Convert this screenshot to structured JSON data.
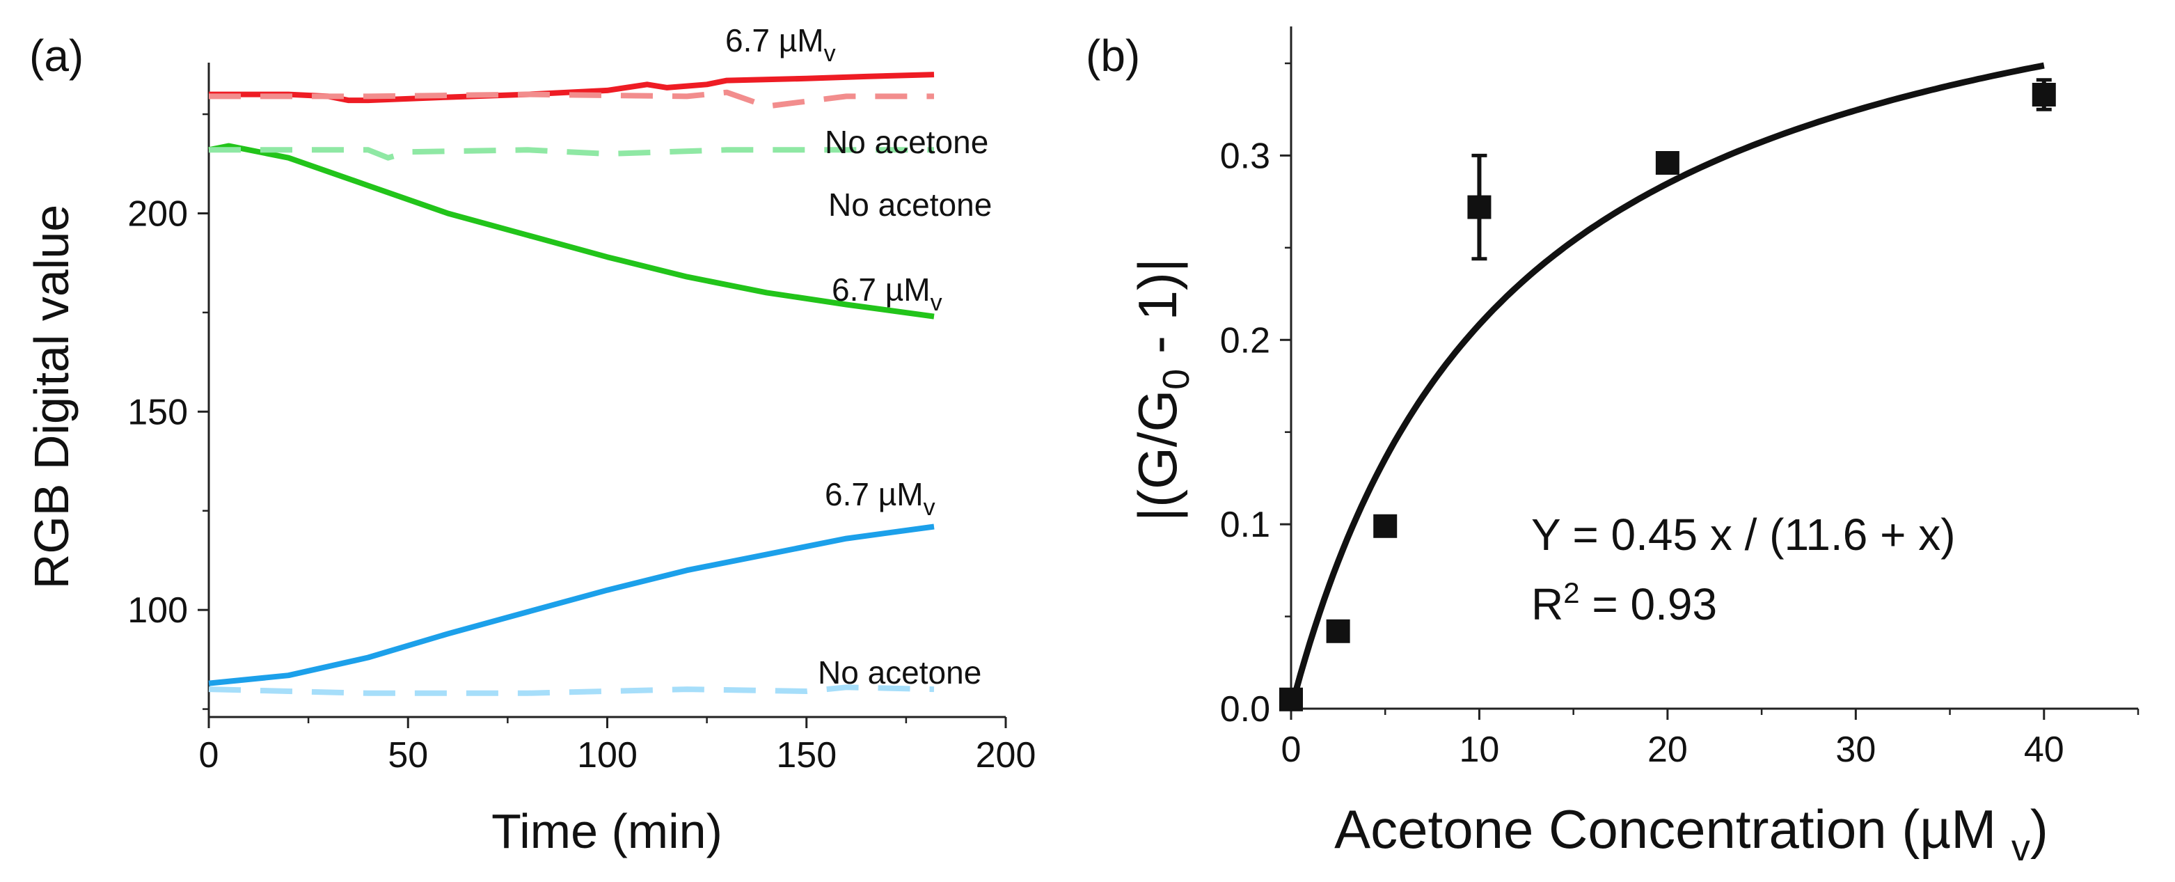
{
  "chart_data": [
    {
      "panel": "a",
      "panel_label": "(a)",
      "type": "line",
      "xlabel": "Time (min)",
      "ylabel": "RGB Digital value",
      "xlim": [
        0,
        200
      ],
      "ylim": [
        73,
        238
      ],
      "x_ticks": [
        0,
        50,
        100,
        150,
        200
      ],
      "x_tick_labels": [
        "0",
        "50",
        "100",
        "150",
        "200"
      ],
      "y_ticks": [
        100,
        150,
        200
      ],
      "y_tick_labels": [
        "100",
        "150",
        "200"
      ],
      "colors": {
        "red": "#ee1c24",
        "red_light": "#f28d8d",
        "green": "#22c41a",
        "green_light": "#8fe8a4",
        "blue": "#1ca0ea",
        "blue_light": "#a6defa"
      },
      "series": [
        {
          "name": "Red 6.7 µMv",
          "color": "#ee1c24",
          "dash": false,
          "x": [
            0,
            20,
            30,
            35,
            40,
            60,
            80,
            100,
            110,
            115,
            125,
            130,
            150,
            165,
            182
          ],
          "y": [
            230,
            230,
            229.5,
            228.5,
            228.5,
            229.3,
            230,
            231,
            232.5,
            231.7,
            232.5,
            233.5,
            234,
            234.5,
            235
          ]
        },
        {
          "name": "Red No acetone",
          "color": "#f28d8d",
          "dash": true,
          "x": [
            0,
            40,
            80,
            120,
            130,
            140,
            160,
            182
          ],
          "y": [
            229.5,
            229.5,
            230,
            229.5,
            230.5,
            227,
            229.5,
            229.5
          ]
        },
        {
          "name": "Green 6.7 µMv",
          "color": "#22c41a",
          "dash": false,
          "x": [
            0,
            5,
            20,
            40,
            60,
            80,
            100,
            120,
            140,
            160,
            182
          ],
          "y": [
            216,
            217,
            214,
            207,
            200,
            194.5,
            189,
            184,
            180,
            177,
            174
          ]
        },
        {
          "name": "Green No acetone",
          "color": "#8fe8a4",
          "dash": true,
          "x": [
            0,
            40,
            45,
            50,
            80,
            100,
            130,
            182
          ],
          "y": [
            216,
            216,
            214,
            215.5,
            216,
            215,
            216,
            216
          ]
        },
        {
          "name": "Blue 6.7 µMv",
          "color": "#1ca0ea",
          "dash": false,
          "x": [
            0,
            20,
            40,
            60,
            80,
            100,
            120,
            140,
            160,
            182
          ],
          "y": [
            81.5,
            83.5,
            88,
            94,
            99.5,
            105,
            110,
            114,
            118,
            121
          ]
        },
        {
          "name": "Blue No acetone",
          "color": "#a6defa",
          "dash": true,
          "x": [
            0,
            20,
            40,
            80,
            120,
            150,
            160,
            182
          ],
          "y": [
            80,
            79.5,
            79,
            79,
            80,
            79.5,
            80.5,
            80
          ]
        }
      ],
      "annotations": [
        {
          "text": "6.7 µM",
          "sub": "v",
          "target": "red"
        },
        {
          "text": "No acetone",
          "target": "red"
        },
        {
          "text": "No acetone",
          "target": "green"
        },
        {
          "text": "6.7 µM",
          "sub": "v",
          "target": "green"
        },
        {
          "text": "6.7 µM",
          "sub": "v",
          "target": "blue"
        },
        {
          "text": "No acetone",
          "target": "blue"
        }
      ]
    },
    {
      "panel": "b",
      "panel_label": "(b)",
      "type": "scatter",
      "xlabel_main": "Acetone Concentration (µM ",
      "xlabel_sub": "v",
      "xlabel_close": ")",
      "ylabel_main": "|(G/G",
      "ylabel_sub": "0",
      "ylabel_close": " - 1)|",
      "xlim": [
        0,
        45
      ],
      "ylim": [
        0,
        0.37
      ],
      "x_ticks": [
        0,
        10,
        20,
        30,
        40
      ],
      "x_tick_labels": [
        "0",
        "10",
        "20",
        "30",
        "40"
      ],
      "y_ticks": [
        0.0,
        0.1,
        0.2,
        0.3
      ],
      "y_tick_labels": [
        "0.0",
        "0.1",
        "0.2",
        "0.3"
      ],
      "points": [
        {
          "x": 0,
          "y": 0.005,
          "err": 0.003
        },
        {
          "x": 2.5,
          "y": 0.042,
          "err": 0.003
        },
        {
          "x": 5,
          "y": 0.099,
          "err": 0.003
        },
        {
          "x": 10,
          "y": 0.272,
          "err": 0.028
        },
        {
          "x": 20,
          "y": 0.296,
          "err": 0.004
        },
        {
          "x": 40,
          "y": 0.333,
          "err": 0.008
        }
      ],
      "fit": {
        "a": 0.45,
        "b": 11.6,
        "x_range": [
          0,
          40
        ]
      },
      "equation_text": "Y = 0.45 x / (11.6 + x)",
      "r2_prefix": "R",
      "r2_sup": "2",
      "r2_suffix": " = 0.93",
      "marker_color": "#111111"
    }
  ]
}
